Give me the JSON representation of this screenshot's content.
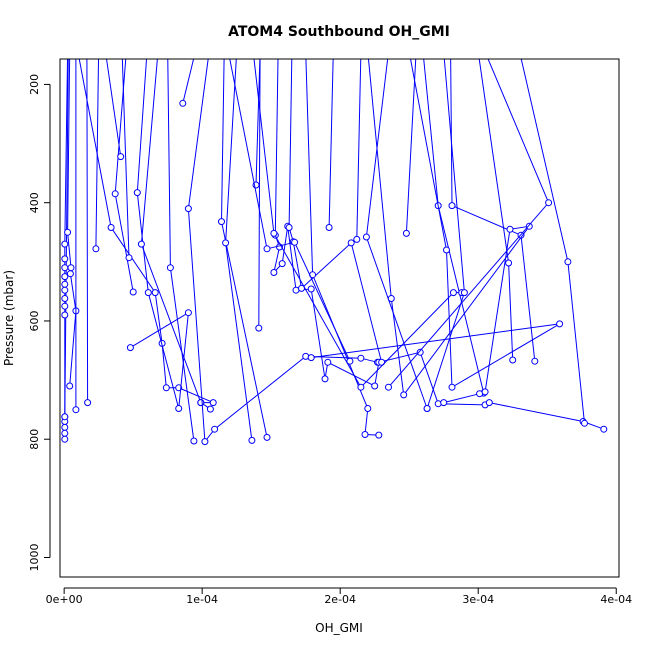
{
  "chart_data": {
    "type": "line",
    "title": "ATOM4 Southbound OH_GMI",
    "xlabel": "OH_GMI",
    "ylabel": "Pressure (mbar)",
    "xlim": [
      -3e-06,
      0.000402
    ],
    "ylim": [
      1033,
      157
    ],
    "y_reversed": true,
    "x_ticks": [
      {
        "value": 0,
        "label": "0e+00"
      },
      {
        "value": 0.0001,
        "label": "1e-04"
      },
      {
        "value": 0.0002,
        "label": "2e-04"
      },
      {
        "value": 0.0003,
        "label": "3e-04"
      },
      {
        "value": 0.0004,
        "label": "4e-04"
      }
    ],
    "y_ticks": [
      {
        "value": 200,
        "label": "200"
      },
      {
        "value": 400,
        "label": "400"
      },
      {
        "value": 600,
        "label": "600"
      },
      {
        "value": 800,
        "label": "800"
      },
      {
        "value": 1000,
        "label": "1000"
      }
    ],
    "grid": false,
    "series_color": "#0000ff",
    "series": [
      {
        "points": [
          [
            3e-06,
            145
          ],
          [
            5e-07,
            762
          ],
          [
            5e-07,
            770
          ],
          [
            5e-07,
            780
          ],
          [
            5e-07,
            790
          ],
          [
            5e-07,
            800
          ]
        ]
      },
      {
        "points": [
          [
            2.5e-06,
            145
          ],
          [
            5e-07,
            470
          ],
          [
            5e-07,
            495
          ],
          [
            5e-07,
            510
          ],
          [
            5e-07,
            525
          ],
          [
            5e-07,
            538
          ],
          [
            5e-07,
            548
          ],
          [
            5e-07,
            562
          ],
          [
            5e-07,
            575
          ],
          [
            5e-07,
            590
          ],
          [
            5e-07,
            762
          ]
        ]
      },
      {
        "points": [
          [
            4e-06,
            145
          ],
          [
            2.5e-06,
            450
          ],
          [
            5e-06,
            510
          ],
          [
            4.5e-06,
            520
          ],
          [
            8.5e-06,
            583
          ],
          [
            4e-06,
            710
          ]
        ]
      },
      {
        "points": [
          [
            8.5e-06,
            145
          ],
          [
            8.5e-06,
            750
          ]
        ]
      },
      {
        "points": [
          [
            1.65e-05,
            145
          ],
          [
            1.7e-05,
            738
          ]
        ]
      },
      {
        "points": [
          [
            2.5e-05,
            145
          ],
          [
            2.3e-05,
            478
          ]
        ]
      },
      {
        "points": [
          [
            1e-05,
            145
          ],
          [
            3.4e-05,
            442
          ],
          [
            6.6e-05,
            552
          ],
          [
            7.1e-05,
            638
          ],
          [
            7.4e-05,
            713
          ],
          [
            8.3e-05,
            713
          ],
          [
            0.000108,
            738
          ],
          [
            9.9e-05,
            738
          ]
        ]
      },
      {
        "points": [
          [
            4.5e-05,
            145
          ],
          [
            3.7e-05,
            385
          ],
          [
            5e-05,
            551
          ]
        ]
      },
      {
        "points": [
          [
            3e-05,
            145
          ],
          [
            4.1e-05,
            322
          ]
        ]
      },
      {
        "points": [
          [
            4.2e-05,
            145
          ],
          [
            4.7e-05,
            493
          ]
        ]
      },
      {
        "points": [
          [
            6e-05,
            145
          ],
          [
            5.3e-05,
            383
          ],
          [
            6.1e-05,
            552
          ],
          [
            8.3e-05,
            748
          ],
          [
            9e-05,
            586
          ],
          [
            4.8e-05,
            645
          ]
        ]
      },
      {
        "points": [
          [
            6.8e-05,
            145
          ],
          [
            5.6e-05,
            470
          ],
          [
            9.9e-05,
            738
          ],
          [
            0.000106,
            749
          ]
        ]
      },
      {
        "points": [
          [
            9.5e-05,
            145
          ],
          [
            8.6e-05,
            232
          ]
        ]
      },
      {
        "points": [
          [
            7.5e-05,
            145
          ],
          [
            7.7e-05,
            510
          ],
          [
            9.4e-05,
            803
          ]
        ]
      },
      {
        "points": [
          [
            0.000105,
            145
          ],
          [
            9e-05,
            410
          ],
          [
            0.000102,
            804
          ],
          [
            0.000109,
            783
          ],
          [
            0.000175,
            660
          ],
          [
            0.000215,
            663
          ],
          [
            0.000227,
            670
          ]
        ]
      },
      {
        "points": [
          [
            0.000116,
            145
          ],
          [
            0.000114,
            432
          ],
          [
            0.000147,
            797
          ]
        ]
      },
      {
        "points": [
          [
            0.000125,
            145
          ],
          [
            0.000117,
            468
          ],
          [
            0.000136,
            802
          ]
        ]
      },
      {
        "points": [
          [
            0.000142,
            145
          ],
          [
            0.000139,
            370
          ]
        ]
      },
      {
        "points": [
          [
            0.000142,
            145
          ],
          [
            0.000141,
            612
          ]
        ]
      },
      {
        "points": [
          [
            0.000155,
            145
          ],
          [
            0.000153,
            455
          ],
          [
            0.000156,
            475
          ],
          [
            0.000152,
            518
          ],
          [
            0.000158,
            503
          ],
          [
            0.000162,
            440
          ],
          [
            0.000168,
            548
          ],
          [
            0.000179,
            546
          ],
          [
            0.000189,
            698
          ],
          [
            0.000191,
            670
          ],
          [
            0.000225,
            710
          ],
          [
            0.000228,
            670
          ],
          [
            0.000258,
            653
          ],
          [
            0.000271,
            740
          ],
          [
            0.000305,
            742
          ],
          [
            0.000308,
            738
          ],
          [
            0.000376,
            770
          ],
          [
            0.000391,
            783
          ]
        ]
      },
      {
        "points": [
          [
            0.000165,
            145
          ],
          [
            0.000163,
            442
          ],
          [
            0.000166,
            466
          ],
          [
            0.000172,
            545
          ],
          [
            0.000208,
            468
          ],
          [
            0.00023,
            670
          ]
        ]
      },
      {
        "points": [
          [
            0.000175,
            145
          ],
          [
            0.00018,
            522
          ],
          [
            0.00022,
            748
          ],
          [
            0.000218,
            792
          ],
          [
            0.000228,
            793
          ]
        ]
      },
      {
        "points": [
          [
            0.000119,
            145
          ],
          [
            0.000147,
            478
          ],
          [
            0.000167,
            467
          ],
          [
            0.000207,
            668
          ]
        ]
      },
      {
        "points": [
          [
            0.000195,
            145
          ],
          [
            0.000192,
            442
          ]
        ]
      },
      {
        "points": [
          [
            0.000215,
            145
          ],
          [
            0.000212,
            462
          ]
        ]
      },
      {
        "points": [
          [
            0.000235,
            145
          ],
          [
            0.000219,
            458
          ],
          [
            0.000263,
            748
          ]
        ]
      },
      {
        "points": [
          [
            0.000255,
            145
          ],
          [
            0.000248,
            452
          ]
        ]
      },
      {
        "points": [
          [
            0.00026,
            145
          ],
          [
            0.000271,
            405
          ],
          [
            0.000304,
            722
          ],
          [
            0.000301,
            723
          ],
          [
            0.000275,
            738
          ]
        ]
      },
      {
        "points": [
          [
            0.00028,
            145
          ],
          [
            0.000281,
            405
          ],
          [
            0.000331,
            455
          ],
          [
            0.000341,
            668
          ]
        ]
      },
      {
        "points": [
          [
            0.0003,
            145
          ],
          [
            0.000322,
            502
          ],
          [
            0.000325,
            666
          ]
        ]
      },
      {
        "points": [
          [
            0.00033,
            145
          ],
          [
            0.000365,
            500
          ],
          [
            0.000377,
            773
          ]
        ]
      },
      {
        "points": [
          [
            0.00025,
            145
          ],
          [
            0.000277,
            480
          ],
          [
            0.000281,
            712
          ],
          [
            0.000359,
            605
          ],
          [
            0.000179,
            662
          ]
        ]
      },
      {
        "points": [
          [
            0.00022,
            145
          ],
          [
            0.000237,
            562
          ],
          [
            0.000246,
            725
          ],
          [
            0.000337,
            440
          ],
          [
            0.000323,
            445
          ],
          [
            0.000305,
            720
          ]
        ]
      },
      {
        "points": [
          [
            0.000137,
            145
          ],
          [
            0.000152,
            452
          ],
          [
            0.000215,
            712
          ],
          [
            0.000282,
            552
          ],
          [
            0.000288,
            552
          ]
        ]
      },
      {
        "points": [
          [
            0.000275,
            145
          ],
          [
            0.00029,
            552
          ],
          [
            0.000263,
            748
          ]
        ]
      },
      {
        "points": [
          [
            0.000305,
            145
          ],
          [
            0.000351,
            400
          ],
          [
            0.000235,
            712
          ]
        ]
      }
    ]
  }
}
